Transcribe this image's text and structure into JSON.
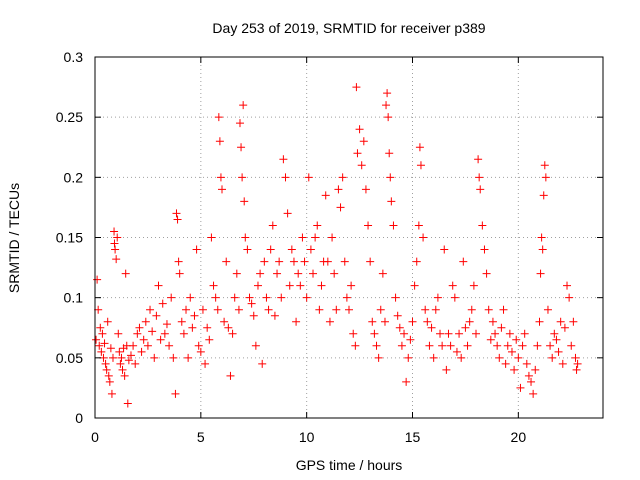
{
  "chart_data": {
    "type": "scatter",
    "title": "Day 253 of 2019, SRMTID for receiver p389",
    "xlabel": "GPS time / hours",
    "ylabel": "SRMTID / TECUs",
    "xlim": [
      0,
      24
    ],
    "ylim": [
      0,
      0.3
    ],
    "xticks": [
      0,
      5,
      10,
      15,
      20
    ],
    "yticks": [
      0,
      0.05,
      0.1,
      0.15,
      0.2,
      0.25,
      0.3
    ],
    "ytick_labels": [
      "0",
      "0.05",
      "0.1",
      "0.15",
      "0.2",
      "0.25",
      "0.3"
    ],
    "grid": true,
    "marker": "plus",
    "color": "#ff0000",
    "series": [
      {
        "name": "SRMTID",
        "points": [
          [
            0.05,
            0.065
          ],
          [
            0.1,
            0.115
          ],
          [
            0.15,
            0.09
          ],
          [
            0.2,
            0.06
          ],
          [
            0.25,
            0.075
          ],
          [
            0.3,
            0.055
          ],
          [
            0.35,
            0.07
          ],
          [
            0.4,
            0.05
          ],
          [
            0.45,
            0.062
          ],
          [
            0.5,
            0.045
          ],
          [
            0.55,
            0.04
          ],
          [
            0.6,
            0.08
          ],
          [
            0.65,
            0.035
          ],
          [
            0.7,
            0.03
          ],
          [
            0.75,
            0.058
          ],
          [
            0.8,
            0.02
          ],
          [
            0.85,
            0.05
          ],
          [
            0.9,
            0.155
          ],
          [
            0.92,
            0.145
          ],
          [
            0.95,
            0.14
          ],
          [
            1.0,
            0.132
          ],
          [
            1.05,
            0.15
          ],
          [
            1.1,
            0.07
          ],
          [
            1.15,
            0.055
          ],
          [
            1.2,
            0.045
          ],
          [
            1.25,
            0.05
          ],
          [
            1.3,
            0.04
          ],
          [
            1.35,
            0.058
          ],
          [
            1.4,
            0.035
          ],
          [
            1.45,
            0.12
          ],
          [
            1.5,
            0.06
          ],
          [
            1.55,
            0.012
          ],
          [
            1.6,
            0.048
          ],
          [
            1.7,
            0.052
          ],
          [
            1.8,
            0.06
          ],
          [
            1.9,
            0.045
          ],
          [
            2.0,
            0.07
          ],
          [
            2.1,
            0.075
          ],
          [
            2.2,
            0.055
          ],
          [
            2.3,
            0.065
          ],
          [
            2.4,
            0.08
          ],
          [
            2.5,
            0.06
          ],
          [
            2.6,
            0.09
          ],
          [
            2.7,
            0.072
          ],
          [
            2.8,
            0.05
          ],
          [
            2.9,
            0.085
          ],
          [
            3.0,
            0.11
          ],
          [
            3.1,
            0.065
          ],
          [
            3.2,
            0.095
          ],
          [
            3.3,
            0.07
          ],
          [
            3.4,
            0.078
          ],
          [
            3.5,
            0.06
          ],
          [
            3.6,
            0.1
          ],
          [
            3.7,
            0.05
          ],
          [
            3.8,
            0.02
          ],
          [
            3.85,
            0.17
          ],
          [
            3.9,
            0.165
          ],
          [
            3.95,
            0.13
          ],
          [
            4.0,
            0.12
          ],
          [
            4.1,
            0.08
          ],
          [
            4.2,
            0.07
          ],
          [
            4.3,
            0.09
          ],
          [
            4.4,
            0.05
          ],
          [
            4.5,
            0.1
          ],
          [
            4.6,
            0.075
          ],
          [
            4.7,
            0.085
          ],
          [
            4.8,
            0.14
          ],
          [
            4.9,
            0.06
          ],
          [
            5.0,
            0.055
          ],
          [
            5.1,
            0.09
          ],
          [
            5.2,
            0.045
          ],
          [
            5.3,
            0.075
          ],
          [
            5.4,
            0.065
          ],
          [
            5.5,
            0.15
          ],
          [
            5.6,
            0.11
          ],
          [
            5.7,
            0.1
          ],
          [
            5.8,
            0.09
          ],
          [
            5.85,
            0.25
          ],
          [
            5.9,
            0.23
          ],
          [
            5.95,
            0.2
          ],
          [
            6.0,
            0.19
          ],
          [
            6.1,
            0.08
          ],
          [
            6.2,
            0.13
          ],
          [
            6.3,
            0.075
          ],
          [
            6.4,
            0.035
          ],
          [
            6.5,
            0.07
          ],
          [
            6.6,
            0.1
          ],
          [
            6.7,
            0.12
          ],
          [
            6.8,
            0.09
          ],
          [
            6.85,
            0.245
          ],
          [
            6.9,
            0.225
          ],
          [
            6.95,
            0.2
          ],
          [
            7.0,
            0.26
          ],
          [
            7.05,
            0.18
          ],
          [
            7.1,
            0.15
          ],
          [
            7.2,
            0.14
          ],
          [
            7.3,
            0.1
          ],
          [
            7.4,
            0.095
          ],
          [
            7.5,
            0.085
          ],
          [
            7.6,
            0.06
          ],
          [
            7.7,
            0.11
          ],
          [
            7.8,
            0.12
          ],
          [
            7.9,
            0.045
          ],
          [
            8.0,
            0.13
          ],
          [
            8.1,
            0.1
          ],
          [
            8.2,
            0.09
          ],
          [
            8.3,
            0.14
          ],
          [
            8.4,
            0.16
          ],
          [
            8.5,
            0.085
          ],
          [
            8.6,
            0.12
          ],
          [
            8.7,
            0.13
          ],
          [
            8.8,
            0.1
          ],
          [
            8.9,
            0.215
          ],
          [
            9.0,
            0.2
          ],
          [
            9.1,
            0.17
          ],
          [
            9.2,
            0.11
          ],
          [
            9.3,
            0.14
          ],
          [
            9.4,
            0.13
          ],
          [
            9.5,
            0.08
          ],
          [
            9.6,
            0.12
          ],
          [
            9.7,
            0.11
          ],
          [
            9.8,
            0.15
          ],
          [
            9.9,
            0.13
          ],
          [
            10.0,
            0.1
          ],
          [
            10.1,
            0.2
          ],
          [
            10.2,
            0.14
          ],
          [
            10.3,
            0.12
          ],
          [
            10.4,
            0.15
          ],
          [
            10.5,
            0.16
          ],
          [
            10.6,
            0.09
          ],
          [
            10.7,
            0.11
          ],
          [
            10.8,
            0.13
          ],
          [
            10.9,
            0.185
          ],
          [
            11.0,
            0.13
          ],
          [
            11.1,
            0.08
          ],
          [
            11.2,
            0.15
          ],
          [
            11.3,
            0.12
          ],
          [
            11.4,
            0.09
          ],
          [
            11.5,
            0.19
          ],
          [
            11.6,
            0.175
          ],
          [
            11.7,
            0.2
          ],
          [
            11.8,
            0.13
          ],
          [
            11.9,
            0.1
          ],
          [
            12.0,
            0.09
          ],
          [
            12.1,
            0.11
          ],
          [
            12.2,
            0.07
          ],
          [
            12.3,
            0.06
          ],
          [
            12.35,
            0.275
          ],
          [
            12.4,
            0.22
          ],
          [
            12.5,
            0.24
          ],
          [
            12.6,
            0.21
          ],
          [
            12.7,
            0.23
          ],
          [
            12.8,
            0.19
          ],
          [
            12.9,
            0.16
          ],
          [
            13.0,
            0.13
          ],
          [
            13.1,
            0.08
          ],
          [
            13.2,
            0.07
          ],
          [
            13.3,
            0.06
          ],
          [
            13.4,
            0.05
          ],
          [
            13.5,
            0.09
          ],
          [
            13.6,
            0.12
          ],
          [
            13.7,
            0.08
          ],
          [
            13.75,
            0.26
          ],
          [
            13.8,
            0.27
          ],
          [
            13.85,
            0.25
          ],
          [
            13.9,
            0.22
          ],
          [
            13.95,
            0.2
          ],
          [
            14.0,
            0.18
          ],
          [
            14.1,
            0.16
          ],
          [
            14.2,
            0.1
          ],
          [
            14.3,
            0.085
          ],
          [
            14.4,
            0.075
          ],
          [
            14.5,
            0.06
          ],
          [
            14.6,
            0.07
          ],
          [
            14.7,
            0.03
          ],
          [
            14.8,
            0.05
          ],
          [
            14.9,
            0.065
          ],
          [
            15.0,
            0.08
          ],
          [
            15.1,
            0.11
          ],
          [
            15.2,
            0.13
          ],
          [
            15.3,
            0.16
          ],
          [
            15.35,
            0.225
          ],
          [
            15.4,
            0.21
          ],
          [
            15.5,
            0.15
          ],
          [
            15.6,
            0.09
          ],
          [
            15.7,
            0.08
          ],
          [
            15.8,
            0.06
          ],
          [
            15.9,
            0.075
          ],
          [
            16.0,
            0.05
          ],
          [
            16.1,
            0.09
          ],
          [
            16.2,
            0.1
          ],
          [
            16.3,
            0.07
          ],
          [
            16.4,
            0.06
          ],
          [
            16.5,
            0.14
          ],
          [
            16.6,
            0.04
          ],
          [
            16.7,
            0.07
          ],
          [
            16.8,
            0.06
          ],
          [
            16.9,
            0.11
          ],
          [
            17.0,
            0.1
          ],
          [
            17.1,
            0.055
          ],
          [
            17.2,
            0.07
          ],
          [
            17.3,
            0.05
          ],
          [
            17.4,
            0.13
          ],
          [
            17.5,
            0.075
          ],
          [
            17.6,
            0.06
          ],
          [
            17.7,
            0.08
          ],
          [
            17.8,
            0.09
          ],
          [
            17.9,
            0.11
          ],
          [
            18.0,
            0.07
          ],
          [
            18.1,
            0.215
          ],
          [
            18.15,
            0.2
          ],
          [
            18.2,
            0.19
          ],
          [
            18.3,
            0.16
          ],
          [
            18.4,
            0.14
          ],
          [
            18.5,
            0.12
          ],
          [
            18.6,
            0.09
          ],
          [
            18.7,
            0.065
          ],
          [
            18.8,
            0.08
          ],
          [
            18.9,
            0.07
          ],
          [
            19.0,
            0.06
          ],
          [
            19.1,
            0.05
          ],
          [
            19.2,
            0.075
          ],
          [
            19.3,
            0.09
          ],
          [
            19.4,
            0.045
          ],
          [
            19.5,
            0.06
          ],
          [
            19.6,
            0.07
          ],
          [
            19.7,
            0.055
          ],
          [
            19.8,
            0.04
          ],
          [
            19.9,
            0.065
          ],
          [
            20.0,
            0.05
          ],
          [
            20.1,
            0.025
          ],
          [
            20.2,
            0.06
          ],
          [
            20.3,
            0.07
          ],
          [
            20.4,
            0.045
          ],
          [
            20.5,
            0.035
          ],
          [
            20.6,
            0.03
          ],
          [
            20.7,
            0.02
          ],
          [
            20.8,
            0.04
          ],
          [
            20.9,
            0.06
          ],
          [
            21.0,
            0.08
          ],
          [
            21.05,
            0.12
          ],
          [
            21.1,
            0.15
          ],
          [
            21.15,
            0.14
          ],
          [
            21.2,
            0.185
          ],
          [
            21.25,
            0.21
          ],
          [
            21.3,
            0.2
          ],
          [
            21.4,
            0.09
          ],
          [
            21.5,
            0.06
          ],
          [
            21.6,
            0.05
          ],
          [
            21.7,
            0.07
          ],
          [
            21.8,
            0.065
          ],
          [
            21.9,
            0.055
          ],
          [
            22.0,
            0.08
          ],
          [
            22.1,
            0.045
          ],
          [
            22.2,
            0.075
          ],
          [
            22.3,
            0.11
          ],
          [
            22.4,
            0.1
          ],
          [
            22.5,
            0.06
          ],
          [
            22.6,
            0.08
          ],
          [
            22.7,
            0.05
          ],
          [
            22.75,
            0.04
          ],
          [
            22.8,
            0.045
          ]
        ]
      }
    ]
  }
}
